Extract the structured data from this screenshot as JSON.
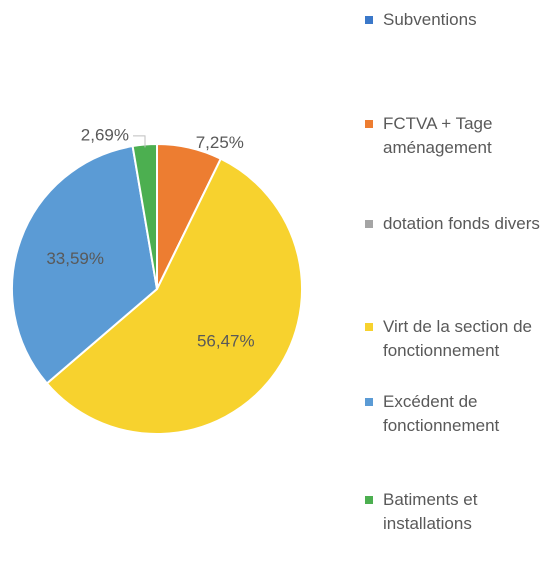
{
  "chart_data": {
    "type": "pie",
    "categories": [
      "Subventions",
      "FCTVA + Tage aménagement",
      "dotation fonds divers",
      "Virt de la section de fonctionnement",
      "Excédent de fonctionnement",
      "Batiments et installations"
    ],
    "values": [
      0,
      7.25,
      0,
      56.47,
      33.59,
      2.69
    ],
    "value_labels": [
      null,
      "7,25%",
      null,
      "56,47%",
      "33,59%",
      "2,69%"
    ],
    "colors": [
      "#3b78c9",
      "#ed7d31",
      "#a5a5a5",
      "#f7d22e",
      "#5b9bd5",
      "#4caf50"
    ]
  }
}
